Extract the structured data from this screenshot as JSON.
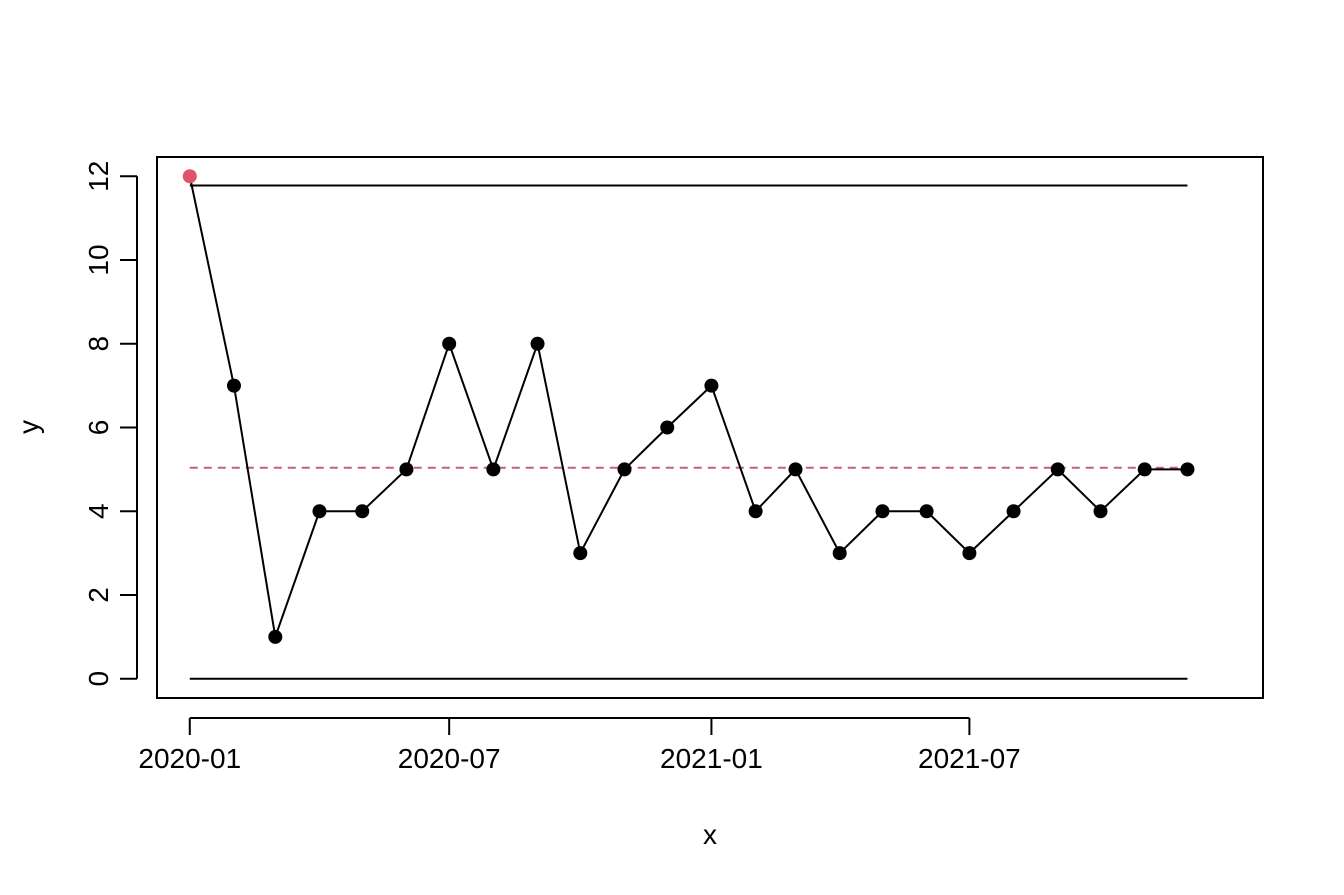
{
  "chart_data": {
    "type": "line",
    "title": "",
    "xlabel": "x",
    "ylabel": "y",
    "x": [
      "2020-01",
      "2020-02",
      "2020-03",
      "2020-04",
      "2020-05",
      "2020-06",
      "2020-07",
      "2020-08",
      "2020-09",
      "2020-10",
      "2020-11",
      "2020-12",
      "2021-01",
      "2021-02",
      "2021-03",
      "2021-04",
      "2021-05",
      "2021-06",
      "2021-07",
      "2021-08",
      "2021-09",
      "2021-10",
      "2021-11",
      "2021-12"
    ],
    "series": [
      {
        "values": [
          12,
          7,
          1,
          4,
          4,
          5,
          8,
          5,
          8,
          3,
          5,
          6,
          7,
          4,
          5,
          3,
          4,
          4,
          3,
          4,
          5,
          4,
          5,
          5
        ],
        "color": "#000000"
      }
    ],
    "highlighted_points": [
      {
        "x": "2020-01",
        "y": 12,
        "color": "#DF536B"
      }
    ],
    "reference_lines": [
      {
        "y": 11.78,
        "style": "solid",
        "color": "#000000"
      },
      {
        "y": 0,
        "style": "solid",
        "color": "#000000"
      },
      {
        "y": 5.04,
        "style": "dashed",
        "color": "#CD5C7E"
      }
    ],
    "xlim": [
      "2019-12-09",
      "2022-01-23"
    ],
    "ylim": [
      -0.46,
      12.46
    ],
    "x_ticks": [
      {
        "x": "2020-01",
        "label": "2020-01"
      },
      {
        "x": "2020-07",
        "label": "2020-07"
      },
      {
        "x": "2021-01",
        "label": "2021-01"
      },
      {
        "x": "2021-07",
        "label": "2021-07"
      }
    ],
    "y_ticks": [
      {
        "y": 0,
        "label": "0"
      },
      {
        "y": 2,
        "label": "2"
      },
      {
        "y": 4,
        "label": "4"
      },
      {
        "y": 6,
        "label": "6"
      },
      {
        "y": 8,
        "label": "8"
      },
      {
        "y": 10,
        "label": "10"
      },
      {
        "y": 12,
        "label": "12"
      }
    ],
    "grid": false,
    "legend": "none"
  }
}
